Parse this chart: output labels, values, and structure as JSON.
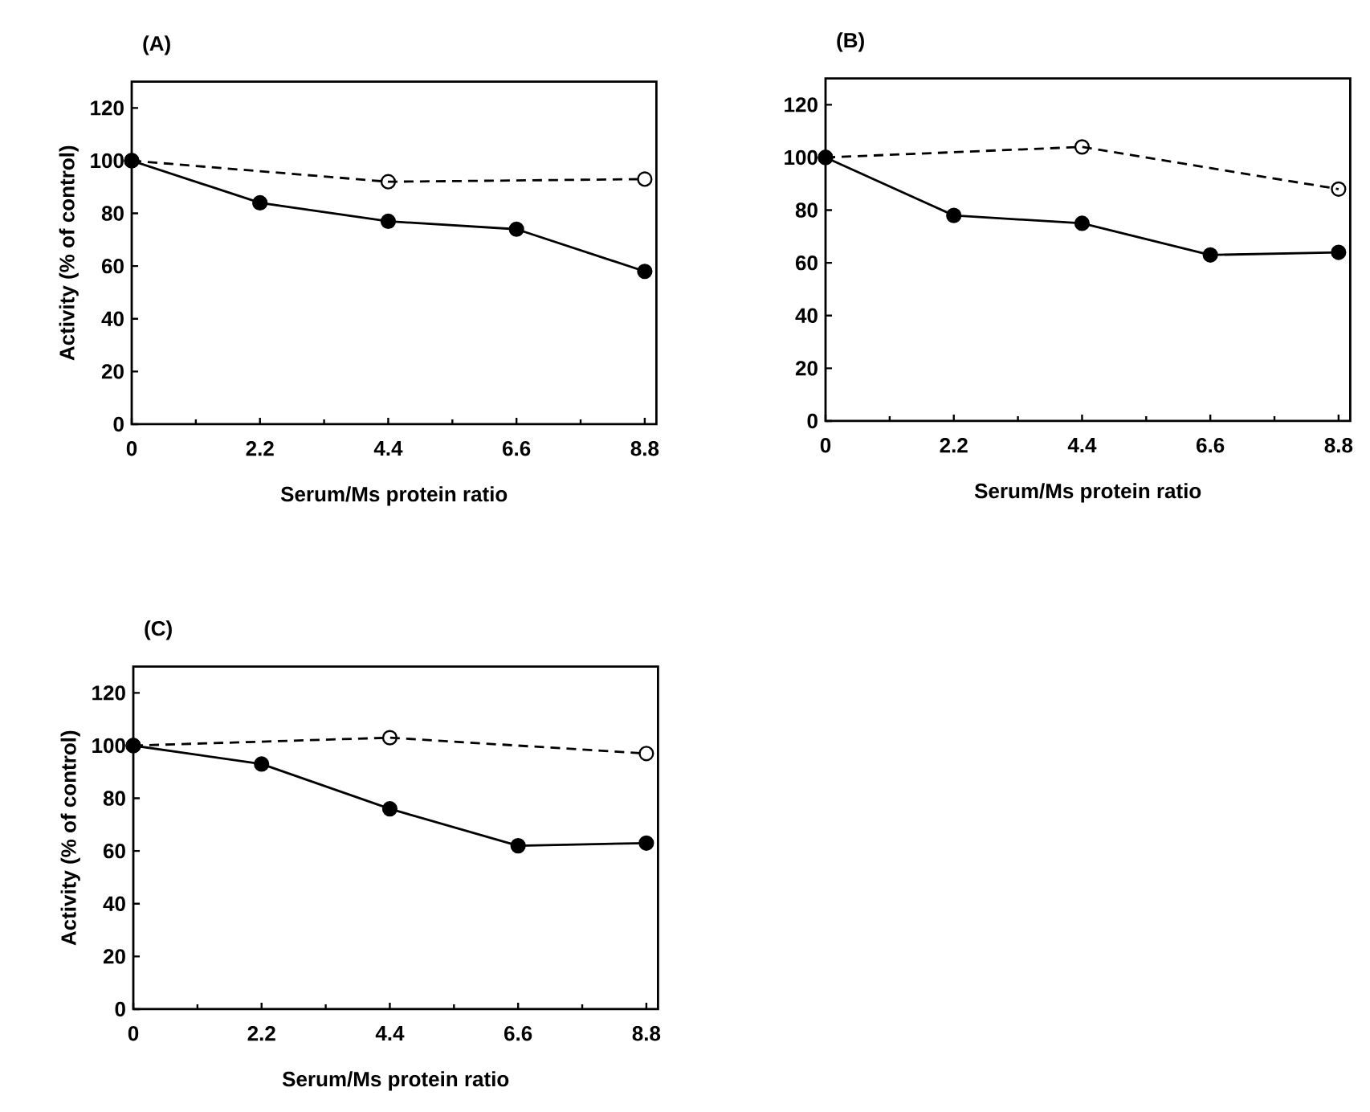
{
  "chart_data": [
    {
      "type": "line",
      "title": "(A)",
      "xlabel": "Serum/Ms protein ratio",
      "ylabel": "Activity (% of control)",
      "xlim": [
        0,
        9
      ],
      "ylim": [
        0,
        130
      ],
      "xticks": [
        0,
        2.2,
        4.4,
        6.6,
        8.8
      ],
      "yticks": [
        0,
        20,
        40,
        60,
        80,
        100,
        120
      ],
      "marker": "circle",
      "series": [
        {
          "color": "#000000",
          "x": [
            0,
            2.2,
            4.4,
            6.6,
            8.8
          ],
          "values": [
            100,
            84,
            77,
            74,
            58
          ],
          "line_style": "solid"
        },
        {
          "color": "#000000",
          "x": [
            0,
            4.4,
            8.8
          ],
          "values": [
            100,
            92,
            93
          ],
          "line_style": "dashed"
        }
      ]
    },
    {
      "type": "line",
      "title": "(B)",
      "xlabel": "Serum/Ms protein ratio",
      "xlim": [
        0,
        9
      ],
      "ylim": [
        0,
        130
      ],
      "xticks": [
        0,
        2.2,
        4.4,
        6.6,
        8.8
      ],
      "yticks": [
        0,
        20,
        40,
        60,
        80,
        100,
        120
      ],
      "marker": "circle",
      "series": [
        {
          "color": "#000000",
          "x": [
            0,
            2.2,
            4.4,
            6.6,
            8.8
          ],
          "values": [
            100,
            78,
            75,
            63,
            64
          ],
          "line_style": "solid"
        },
        {
          "color": "#000000",
          "x": [
            0,
            4.4,
            8.8
          ],
          "values": [
            100,
            104,
            88
          ],
          "line_style": "dashed"
        }
      ]
    },
    {
      "type": "line",
      "title": "(C)",
      "xlabel": "Serum/Ms protein ratio",
      "ylabel": "Activity (% of control)",
      "xlim": [
        0,
        9
      ],
      "ylim": [
        0,
        130
      ],
      "xticks": [
        0,
        2.2,
        4.4,
        6.6,
        8.8
      ],
      "yticks": [
        0,
        20,
        40,
        60,
        80,
        100,
        120
      ],
      "marker": "circle",
      "series": [
        {
          "color": "#000000",
          "x": [
            0,
            2.2,
            4.4,
            6.6,
            8.8
          ],
          "values": [
            100,
            93,
            76,
            62,
            63
          ],
          "line_style": "solid"
        },
        {
          "color": "#000000",
          "x": [
            0,
            4.4,
            8.8
          ],
          "values": [
            100,
            103,
            97
          ],
          "line_style": "dashed"
        }
      ]
    }
  ]
}
